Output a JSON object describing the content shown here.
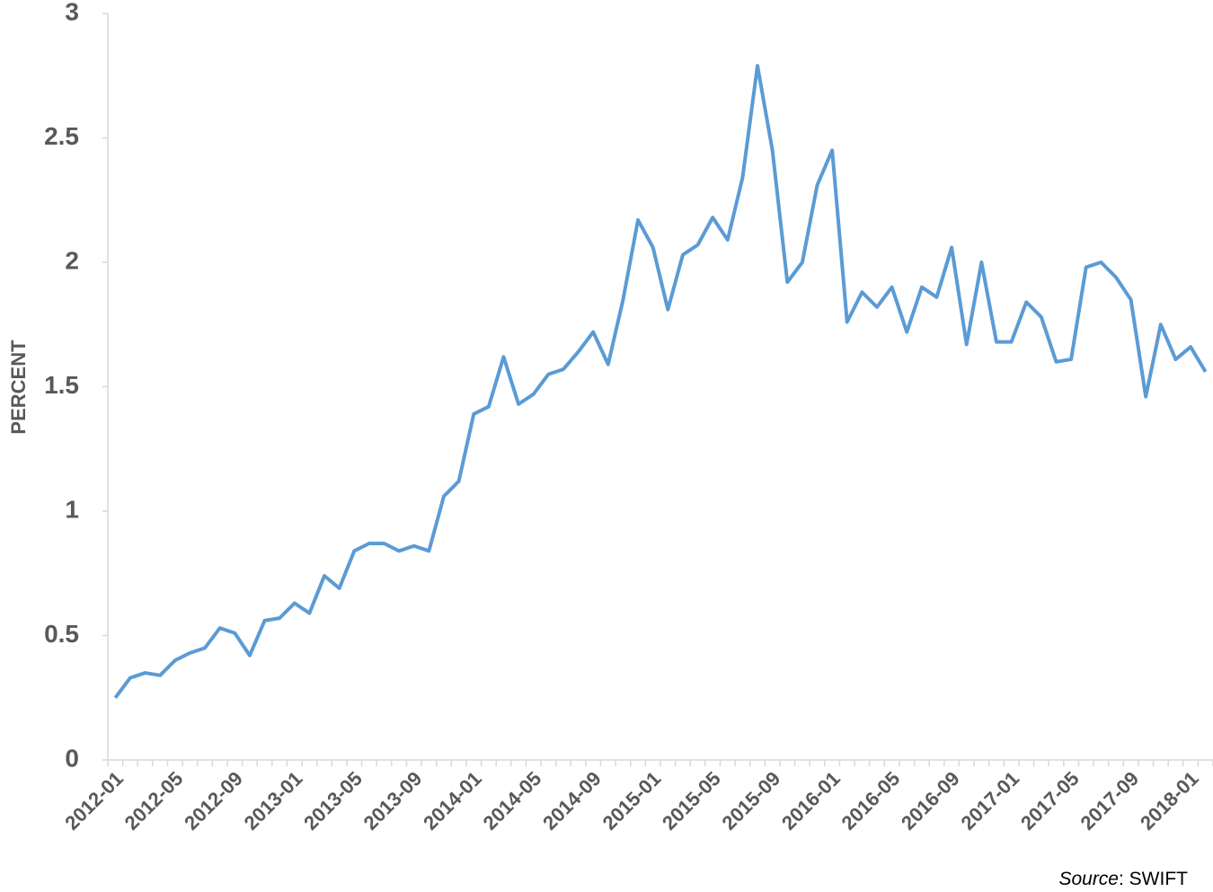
{
  "chart_data": {
    "type": "line",
    "y_label": "PERCENT",
    "source_label": "Source",
    "source_text": ": SWIFT",
    "categories": [
      "2012-01",
      null,
      null,
      null,
      "2012-05",
      null,
      null,
      null,
      "2012-09",
      null,
      null,
      null,
      "2013-01",
      null,
      null,
      null,
      "2013-05",
      null,
      null,
      null,
      "2013-09",
      null,
      null,
      null,
      "2014-01",
      null,
      null,
      null,
      "2014-05",
      null,
      null,
      null,
      "2014-09",
      null,
      null,
      null,
      "2015-01",
      null,
      null,
      null,
      "2015-05",
      null,
      null,
      null,
      "2015-09",
      null,
      null,
      null,
      "2016-01",
      null,
      null,
      null,
      "2016-05",
      null,
      null,
      null,
      "2016-09",
      null,
      null,
      null,
      "2017-01",
      null,
      null,
      null,
      "2017-05",
      null,
      null,
      null,
      "2017-09",
      null,
      null,
      null,
      "2018-01",
      null
    ],
    "series": [
      {
        "color": "#5b9bd5",
        "values": [
          0.25,
          0.33,
          0.35,
          0.34,
          0.4,
          0.43,
          0.45,
          0.53,
          0.51,
          0.42,
          0.56,
          0.57,
          0.63,
          0.59,
          0.74,
          0.69,
          0.84,
          0.87,
          0.87,
          0.84,
          0.86,
          0.84,
          1.06,
          1.12,
          1.39,
          1.42,
          1.62,
          1.43,
          1.47,
          1.55,
          1.57,
          1.64,
          1.72,
          1.59,
          1.85,
          2.17,
          2.06,
          1.81,
          2.03,
          2.07,
          2.18,
          2.09,
          2.34,
          2.79,
          2.45,
          1.92,
          2.0,
          2.31,
          2.45,
          1.76,
          1.88,
          1.82,
          1.9,
          1.72,
          1.9,
          1.86,
          2.06,
          1.67,
          2.0,
          1.68,
          1.68,
          1.84,
          1.78,
          1.6,
          1.61,
          1.98,
          2.0,
          1.94,
          1.85,
          1.46,
          1.75,
          1.61,
          1.66,
          1.56
        ]
      }
    ],
    "ylim": [
      0,
      3
    ],
    "yticks": [
      0,
      0.5,
      1,
      1.5,
      2,
      2.5,
      3
    ],
    "grid": false
  }
}
